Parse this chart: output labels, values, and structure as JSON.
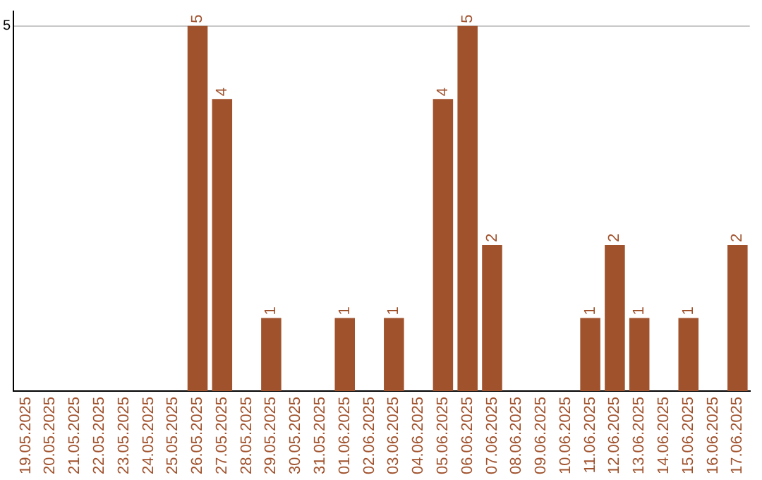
{
  "chart_data": {
    "type": "bar",
    "categories": [
      "19.05.2025",
      "20.05.2025",
      "21.05.2025",
      "22.05.2025",
      "23.05.2025",
      "24.05.2025",
      "25.05.2025",
      "26.05.2025",
      "27.05.2025",
      "28.05.2025",
      "29.05.2025",
      "30.05.2025",
      "31.05.2025",
      "01.06.2025",
      "02.06.2025",
      "03.06.2025",
      "04.06.2025",
      "05.06.2025",
      "06.06.2025",
      "07.06.2025",
      "08.06.2025",
      "09.06.2025",
      "10.06.2025",
      "11.06.2025",
      "12.06.2025",
      "13.06.2025",
      "14.06.2025",
      "15.06.2025",
      "16.06.2025",
      "17.06.2025"
    ],
    "values": [
      0,
      0,
      0,
      0,
      0,
      0,
      0,
      5,
      4,
      0,
      1,
      0,
      0,
      1,
      0,
      1,
      0,
      4,
      5,
      2,
      0,
      0,
      0,
      1,
      2,
      1,
      0,
      1,
      0,
      2
    ],
    "value_labels": [
      null,
      null,
      null,
      null,
      null,
      null,
      null,
      "5",
      "4",
      null,
      "1",
      null,
      null,
      "1",
      null,
      "1",
      null,
      "4",
      "5",
      "2",
      null,
      null,
      null,
      "1",
      "2",
      "1",
      null,
      "1",
      null,
      "2"
    ],
    "color": "#a0522d",
    "ylim": [
      0,
      5.2
    ],
    "yticks": [
      5
    ],
    "grid": "y",
    "legend": false
  }
}
